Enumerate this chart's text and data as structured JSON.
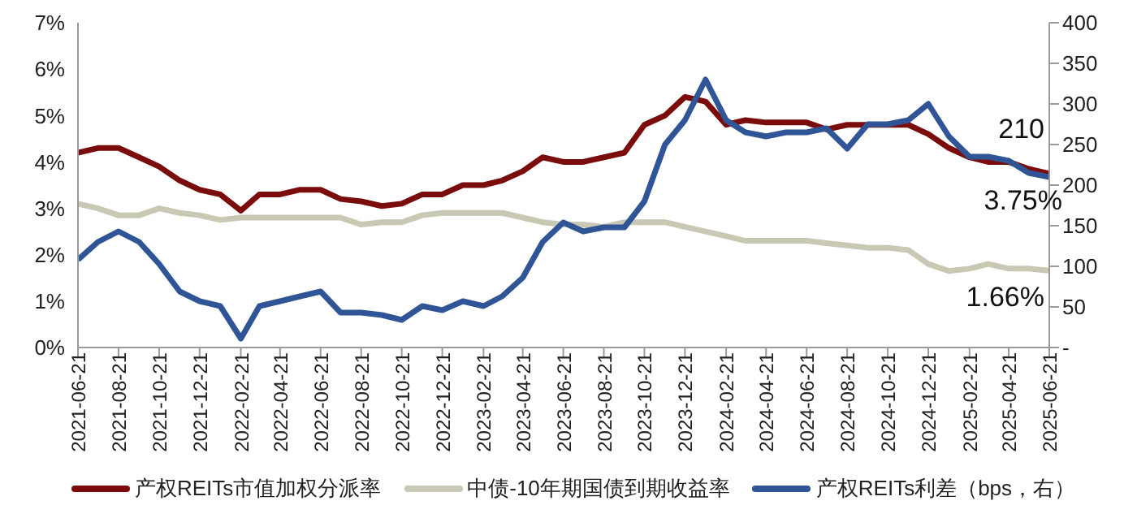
{
  "chart_data": {
    "type": "line",
    "x": [
      "2021-06-21",
      "2021-07-21",
      "2021-08-21",
      "2021-09-21",
      "2021-10-21",
      "2021-11-21",
      "2021-12-21",
      "2022-01-21",
      "2022-02-21",
      "2022-03-21",
      "2022-04-21",
      "2022-05-21",
      "2022-06-21",
      "2022-07-21",
      "2022-08-21",
      "2022-09-21",
      "2022-10-21",
      "2022-11-21",
      "2022-12-21",
      "2023-01-21",
      "2023-02-21",
      "2023-03-21",
      "2023-04-21",
      "2023-05-21",
      "2023-06-21",
      "2023-07-21",
      "2023-08-21",
      "2023-09-21",
      "2023-10-21",
      "2023-11-21",
      "2023-12-21",
      "2024-01-21",
      "2024-02-21",
      "2024-03-21",
      "2024-04-21",
      "2024-05-21",
      "2024-06-21",
      "2024-07-21",
      "2024-08-21",
      "2024-09-21",
      "2024-10-21",
      "2024-11-21",
      "2024-12-21",
      "2025-01-21",
      "2025-02-21",
      "2025-03-21",
      "2025-04-21",
      "2025-05-21",
      "2025-06-21"
    ],
    "series": [
      {
        "name": "产权REITs市值加权分派率",
        "color": "#7b0c0c",
        "values": [
          4.2,
          4.3,
          4.3,
          4.1,
          3.9,
          3.6,
          3.4,
          3.3,
          2.95,
          3.3,
          3.3,
          3.4,
          3.4,
          3.2,
          3.15,
          3.05,
          3.1,
          3.3,
          3.3,
          3.5,
          3.5,
          3.6,
          3.8,
          4.1,
          4.0,
          4.0,
          4.1,
          4.2,
          4.8,
          5.0,
          5.4,
          5.3,
          4.8,
          4.9,
          4.85,
          4.85,
          4.85,
          4.7,
          4.8,
          4.8,
          4.8,
          4.8,
          4.6,
          4.3,
          4.1,
          4.0,
          4.0,
          3.85,
          3.75
        ]
      },
      {
        "name": "中债-10年期国债到期收益率",
        "color": "#c8c8b4",
        "values": [
          3.1,
          3.0,
          2.85,
          2.85,
          3.0,
          2.9,
          2.85,
          2.75,
          2.8,
          2.8,
          2.8,
          2.8,
          2.8,
          2.8,
          2.65,
          2.7,
          2.7,
          2.85,
          2.9,
          2.9,
          2.9,
          2.9,
          2.8,
          2.7,
          2.65,
          2.65,
          2.6,
          2.7,
          2.7,
          2.7,
          2.6,
          2.5,
          2.4,
          2.3,
          2.3,
          2.3,
          2.3,
          2.25,
          2.2,
          2.15,
          2.15,
          2.1,
          1.8,
          1.65,
          1.7,
          1.8,
          1.7,
          1.7,
          1.66
        ]
      },
      {
        "name": "产权REITs利差（bps，右）",
        "color": "#2f5597",
        "axis": "y2",
        "values": [
          108,
          130,
          143,
          130,
          103,
          69,
          57,
          51,
          11,
          51,
          57,
          63,
          69,
          43,
          43,
          40,
          34,
          51,
          46,
          57,
          51,
          63,
          86,
          130,
          154,
          143,
          148,
          148,
          180,
          250,
          280,
          330,
          280,
          265,
          260,
          265,
          265,
          270,
          245,
          275,
          275,
          280,
          300,
          260,
          235,
          235,
          230,
          215,
          210
        ]
      }
    ],
    "xlim": [
      "2021-06-21",
      "2025-06-21"
    ],
    "xticks": [
      "2021-06-21",
      "2021-08-21",
      "2021-10-21",
      "2021-12-21",
      "2022-02-21",
      "2022-04-21",
      "2022-06-21",
      "2022-08-21",
      "2022-10-21",
      "2022-12-21",
      "2023-02-21",
      "2023-04-21",
      "2023-06-21",
      "2023-08-21",
      "2023-10-21",
      "2023-12-21",
      "2024-02-21",
      "2024-04-21",
      "2024-06-21",
      "2024-08-21",
      "2024-10-21",
      "2024-12-21",
      "2025-02-21",
      "2025-04-21",
      "2025-06-21"
    ],
    "ylim": [
      0,
      7
    ],
    "yticks": [
      {
        "value": 0,
        "label": "0%"
      },
      {
        "value": 1,
        "label": "1%"
      },
      {
        "value": 2,
        "label": "2%"
      },
      {
        "value": 3,
        "label": "3%"
      },
      {
        "value": 4,
        "label": "4%"
      },
      {
        "value": 5,
        "label": "5%"
      },
      {
        "value": 6,
        "label": "6%"
      },
      {
        "value": 7,
        "label": "7%"
      }
    ],
    "y2lim": [
      0,
      400
    ],
    "y2ticks": [
      {
        "value": 0,
        "label": "-"
      },
      50,
      100,
      150,
      200,
      250,
      300,
      350,
      400
    ],
    "annotations": [
      {
        "text": "210",
        "x": "2025-06-21",
        "y": 3.675
      },
      {
        "text": "3.75%",
        "x": "2025-06-21",
        "y": 3.75
      },
      {
        "text": "1.66%",
        "x": "2025-06-21",
        "y": 1.66
      }
    ],
    "grid": false,
    "legend": "bottom",
    "marker": "none",
    "line_style": "solid"
  }
}
